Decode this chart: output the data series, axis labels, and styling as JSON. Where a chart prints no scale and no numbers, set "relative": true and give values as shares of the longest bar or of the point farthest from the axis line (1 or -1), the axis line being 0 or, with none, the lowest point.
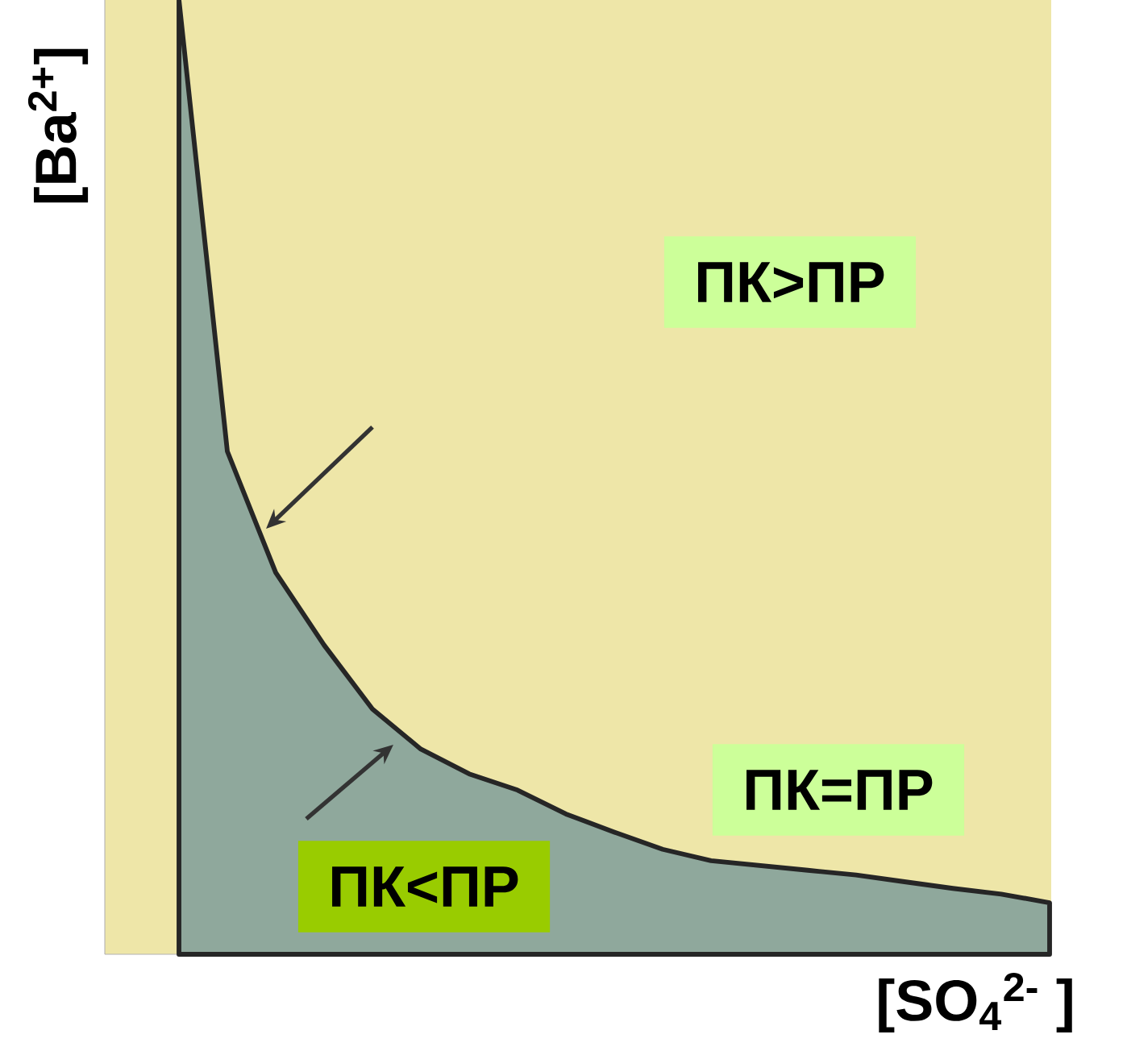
{
  "chart_data": {
    "type": "area",
    "relative": true,
    "xlabel": "[SO$_{4}$$^{2-}$ ]",
    "ylabel": "[Ba$^{2+}$]",
    "categories": [
      null,
      null,
      null,
      null,
      null,
      null,
      null,
      null,
      null,
      null,
      null,
      null,
      null,
      null,
      null,
      null,
      null,
      null,
      null
    ],
    "series": [
      {
        "color": "#8fa89c",
        "values": [
          1.0,
          0.527,
          0.4,
          0.324,
          0.257,
          0.215,
          0.189,
          0.172,
          0.147,
          0.128,
          0.11,
          0.098,
          0.093,
          0.088,
          0.083,
          0.076,
          0.069,
          0.063,
          0.054
        ]
      }
    ],
    "annotations": [
      "ПК>ПР",
      "ПК=ПР",
      "ПК<ПР"
    ]
  }
}
